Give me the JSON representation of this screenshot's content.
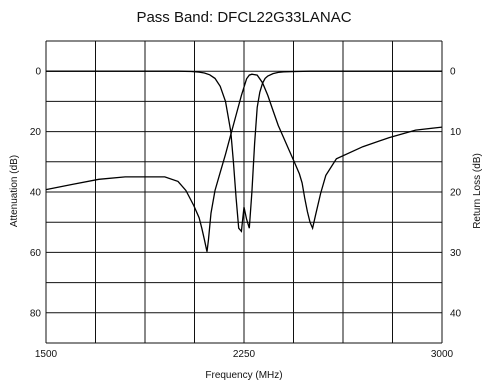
{
  "chart_data": {
    "type": "line",
    "title": "Pass Band: DFCL22G33LANAC",
    "xlabel": "Frequency (MHz)",
    "ylabel_left": "Attenuation (dB)",
    "ylabel_right": "Return Loss (dB)",
    "xlim": [
      1500,
      3000
    ],
    "ylim_left": [
      -10,
      90
    ],
    "ylim_right": [
      -5,
      45
    ],
    "x_ticks": [
      1500,
      2250,
      3000
    ],
    "y_ticks_left": [
      0,
      20,
      40,
      60,
      80
    ],
    "y_ticks_right": [
      0,
      10,
      20,
      30,
      40
    ],
    "grid": true,
    "series": [
      {
        "axis": "left",
        "x": [
          1500,
          1600,
          1700,
          1800,
          1900,
          1950,
          2000,
          2030,
          2060,
          2080,
          2090,
          2100,
          2110,
          2115,
          2125,
          2140,
          2160,
          2180,
          2200,
          2220,
          2240,
          2260,
          2270,
          2280,
          2300,
          2320,
          2340,
          2360,
          2380,
          2400,
          2420,
          2440,
          2460,
          2470,
          2480,
          2490,
          2500,
          2510,
          2520,
          2540,
          2560,
          2600,
          2700,
          2800,
          2900,
          3000
        ],
        "y": [
          39.2,
          37.5,
          35.8,
          35.0,
          35.0,
          35.0,
          36.5,
          39.5,
          44.5,
          48.5,
          52.0,
          55.8,
          59.8,
          56.0,
          47.0,
          39.5,
          33.5,
          27.5,
          21.0,
          14.5,
          8.0,
          2.5,
          1.3,
          1.0,
          1.3,
          3.8,
          8.0,
          13.0,
          18.0,
          22.0,
          26.0,
          30.0,
          34.0,
          37.0,
          42.0,
          46.5,
          50.0,
          52.0,
          48.0,
          40.5,
          34.5,
          29.0,
          25.0,
          22.0,
          19.5,
          18.5
        ]
      },
      {
        "axis": "right",
        "x": [
          1500,
          1800,
          2000,
          2050,
          2080,
          2100,
          2120,
          2140,
          2160,
          2180,
          2200,
          2210,
          2220,
          2230,
          2240,
          2250,
          2260,
          2270,
          2280,
          2290,
          2300,
          2310,
          2320,
          2330,
          2340,
          2360,
          2380,
          2400,
          2450,
          2500,
          2700,
          3000
        ],
        "y": [
          0,
          0,
          0,
          0.05,
          0.15,
          0.3,
          0.6,
          1.2,
          2.5,
          5.0,
          10.0,
          15.0,
          21.0,
          26.0,
          26.5,
          22.5,
          24.5,
          26.0,
          20.0,
          12.0,
          6.0,
          3.5,
          2.0,
          1.2,
          0.8,
          0.4,
          0.2,
          0.1,
          0.05,
          0,
          0,
          0
        ]
      }
    ]
  }
}
